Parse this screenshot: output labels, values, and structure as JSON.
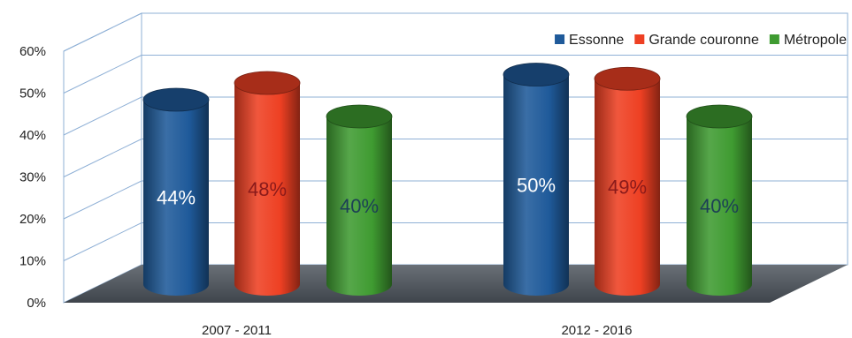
{
  "chart_data": {
    "type": "bar",
    "categories": [
      "2007 - 2011",
      "2012 - 2016"
    ],
    "series": [
      {
        "name": "Essonne",
        "values": [
          44,
          50
        ],
        "labels": [
          "44%",
          "50%"
        ],
        "color": "#1f5a9a",
        "label_color": "#ffffff"
      },
      {
        "name": "Grande couronne",
        "values": [
          48,
          49
        ],
        "labels": [
          "48%",
          "49%"
        ],
        "color": "#ee4023",
        "label_color": "#8a1a1a"
      },
      {
        "name": "Métropole",
        "values": [
          40,
          40
        ],
        "labels": [
          "40%",
          "40%"
        ],
        "color": "#3f9b31",
        "label_color": "#1c3f55"
      }
    ],
    "ylim": [
      0,
      60
    ],
    "y_ticks": [
      "0%",
      "10%",
      "20%",
      "30%",
      "40%",
      "50%",
      "60%"
    ],
    "grid": true,
    "legend_position": "top-right",
    "style": "3d-cylinder"
  }
}
